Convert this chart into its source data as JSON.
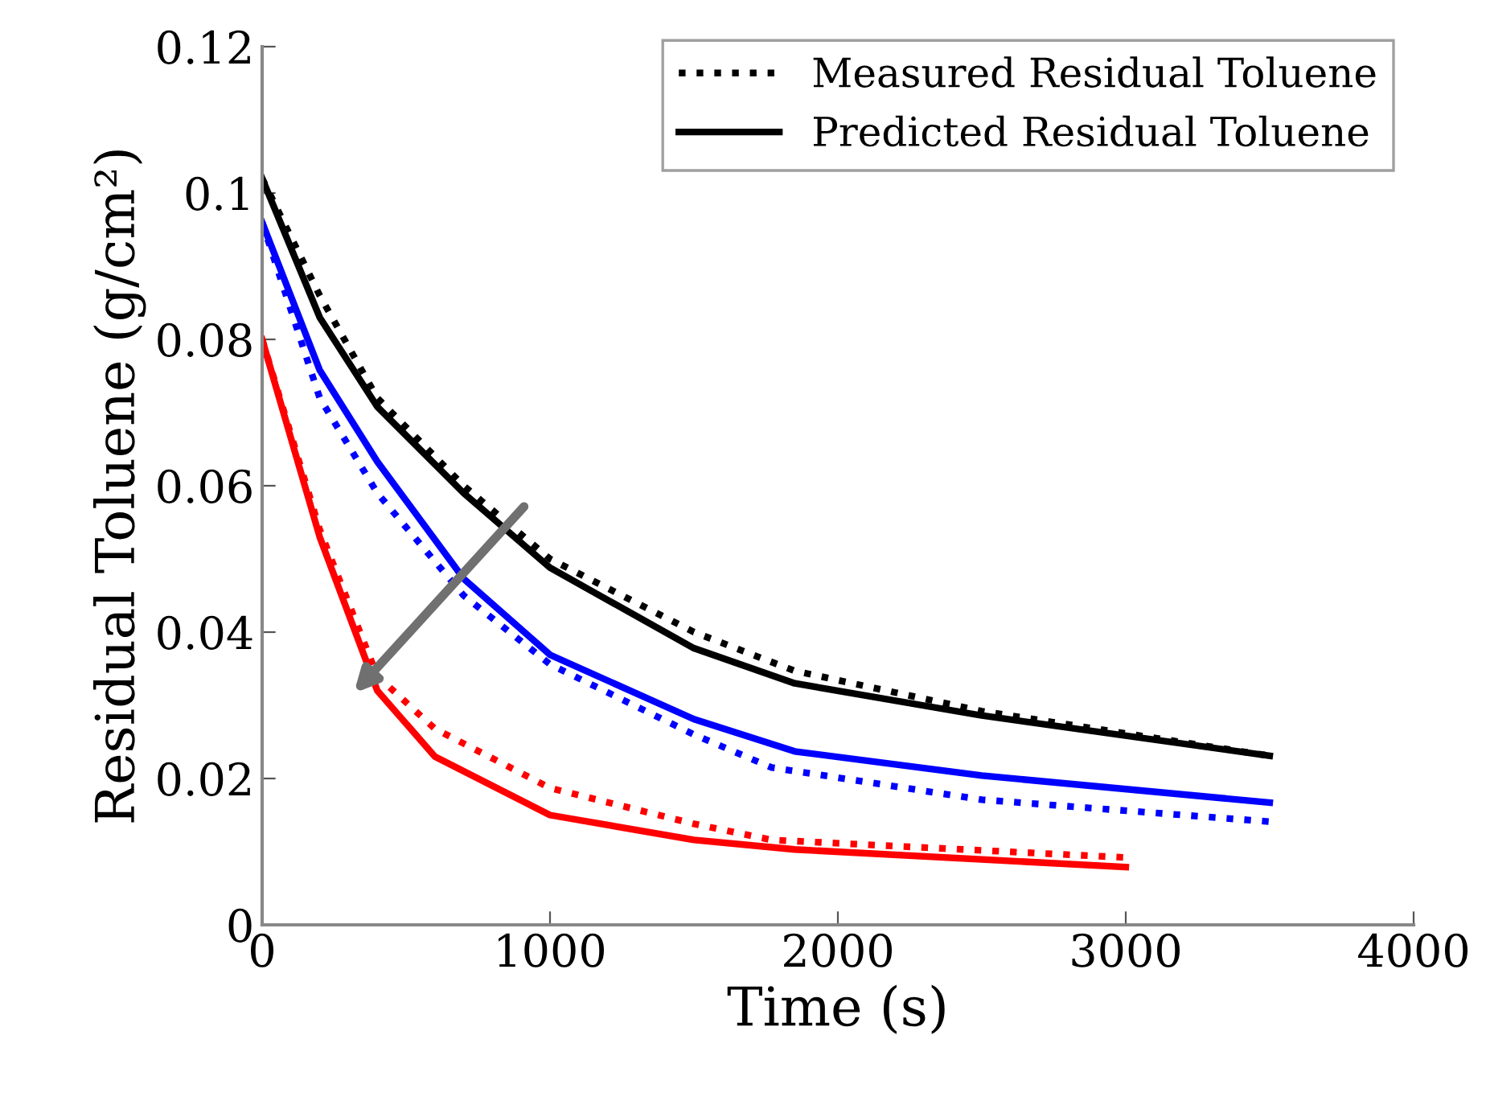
{
  "chart_data": {
    "type": "line",
    "xlabel": "Time (s)",
    "ylabel": "Residual Toluene (g/cm²)",
    "xlim": [
      0,
      4000
    ],
    "ylim": [
      0,
      0.12
    ],
    "xticks": [
      0,
      1000,
      2000,
      3000,
      4000
    ],
    "yticks": [
      0,
      0.02,
      0.04,
      0.06,
      0.08,
      0.1,
      0.12
    ],
    "grid": false,
    "legend": "top right",
    "series": [
      {
        "name": "Measured Residual Toluene",
        "color": "#000000",
        "line_style": "dotted",
        "x": [
          0,
          200,
          400,
          700,
          1000,
          1500,
          1850,
          2500,
          3500
        ],
        "values": [
          0.102,
          0.086,
          0.072,
          0.06,
          0.05,
          0.04,
          0.0347,
          0.0292,
          0.0231
        ]
      },
      {
        "name": "Predicted Residual Toluene",
        "color": "#000000",
        "line_style": "solid",
        "x": [
          0,
          200,
          400,
          700,
          1000,
          1500,
          1850,
          2500,
          3500
        ],
        "values": [
          0.102,
          0.083,
          0.0708,
          0.059,
          0.0488,
          0.0378,
          0.033,
          0.0286,
          0.0231
        ]
      },
      {
        "color": "#0000ff",
        "line_style": "dotted",
        "x": [
          0,
          200,
          400,
          700,
          1000,
          1500,
          1770,
          2500,
          3500
        ],
        "values": [
          0.096,
          0.072,
          0.059,
          0.045,
          0.0356,
          0.026,
          0.0215,
          0.0171,
          0.0141
        ]
      },
      {
        "color": "#0000ff",
        "line_style": "solid",
        "x": [
          0,
          200,
          400,
          700,
          1000,
          1500,
          1850,
          2500,
          3500
        ],
        "values": [
          0.096,
          0.0758,
          0.0633,
          0.0473,
          0.0369,
          0.0281,
          0.0237,
          0.0204,
          0.0167
        ]
      },
      {
        "color": "#ff0000",
        "line_style": "dotted",
        "x": [
          0,
          200,
          400,
          600,
          1000,
          1500,
          1770,
          3000
        ],
        "values": [
          0.08,
          0.054,
          0.034,
          0.0268,
          0.0187,
          0.0138,
          0.0116,
          0.0092
        ]
      },
      {
        "color": "#ff0000",
        "line_style": "solid",
        "x": [
          0,
          200,
          400,
          600,
          1000,
          1500,
          1850,
          3000
        ],
        "values": [
          0.08,
          0.053,
          0.032,
          0.023,
          0.015,
          0.0116,
          0.0103,
          0.0079
        ]
      }
    ]
  }
}
